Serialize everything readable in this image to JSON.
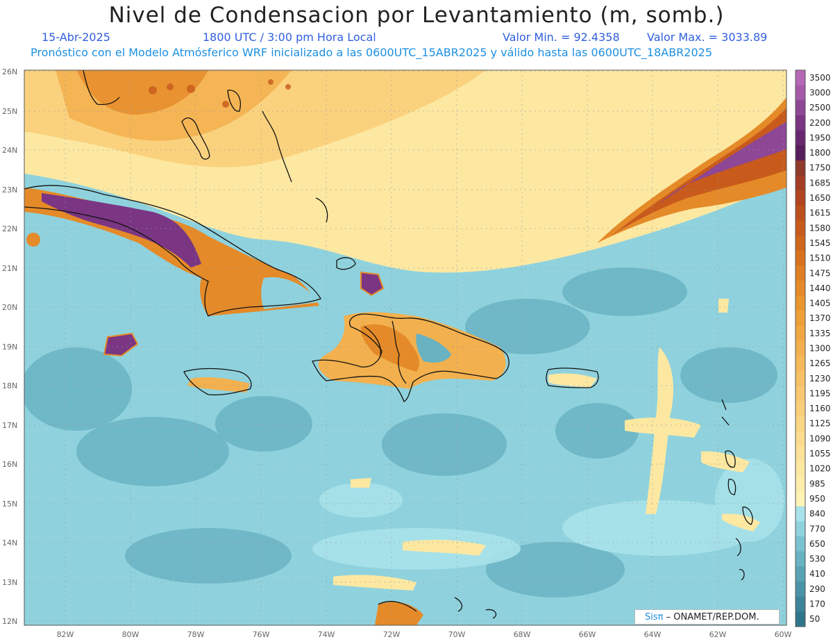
{
  "header": {
    "title": "Nivel de Condensacion por Levantamiento (m, somb.)",
    "date": "15-Abr-2025",
    "time": "1800 UTC / 3:00 pm Hora Local",
    "min_label": "Valor Min. = 92.4358",
    "max_label": "Valor Max. = 3033.89",
    "model_info": "Pronóstico con el Modelo Atmósferico WRF inicializado a las 0600UTC_15ABR2025 y válido hasta las  0600UTC_18ABR2025"
  },
  "map": {
    "lat_labels": [
      "26N",
      "25N",
      "24N",
      "23N",
      "22N",
      "21N",
      "20N",
      "19N",
      "18N",
      "17N",
      "16N",
      "15N",
      "14N",
      "13N",
      "12N"
    ],
    "lon_labels": [
      "82W",
      "80W",
      "78W",
      "76W",
      "74W",
      "72W",
      "70W",
      "68W",
      "66W",
      "64W",
      "62W",
      "60W"
    ],
    "credit_brand": "Sisπ",
    "credit_text": "– ONAMET/REP.DOM."
  },
  "colorbar": {
    "labels": [
      "3500",
      "3000",
      "2500",
      "2200",
      "1950",
      "1800",
      "1750",
      "1685",
      "1650",
      "1615",
      "1580",
      "1545",
      "1510",
      "1475",
      "1440",
      "1405",
      "1370",
      "1335",
      "1300",
      "1265",
      "1230",
      "1195",
      "1160",
      "1125",
      "1090",
      "1055",
      "1020",
      "985",
      "950",
      "840",
      "770",
      "650",
      "530",
      "410",
      "290",
      "170",
      "50"
    ],
    "colors": [
      "#b768b6",
      "#a45aa8",
      "#8d4795",
      "#7a3583",
      "#672870",
      "#561e5a",
      "#8e3a2c",
      "#a33d24",
      "#b1451f",
      "#bd4f1d",
      "#c85a1c",
      "#d0651c",
      "#d8711d",
      "#df7e22",
      "#e58a28",
      "#ea962f",
      "#ee9f38",
      "#f1a842",
      "#f3b04e",
      "#f5b85a",
      "#f6c066",
      "#f8c870",
      "#f9cf7a",
      "#fad684",
      "#fbdc8e",
      "#fce298",
      "#fde8a2",
      "#feedab",
      "#fff3b6",
      "#a8e2ea",
      "#8fd2dd",
      "#7ac2d0",
      "#68b2c2",
      "#58a2b4",
      "#4a93a6",
      "#3c8498",
      "#2e768a"
    ]
  }
}
